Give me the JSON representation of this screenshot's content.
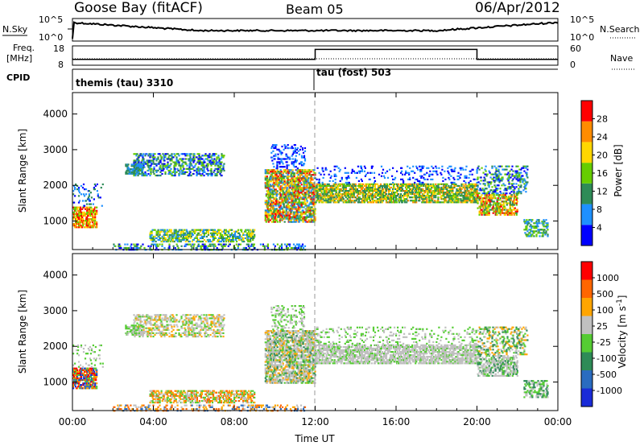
{
  "header": {
    "station": "Goose Bay (fitACF)",
    "beam": "Beam 05",
    "date": "06/Apr/2012"
  },
  "noise_panel": {
    "left_label": "N.Sky",
    "right_label": "N.Search",
    "left_ticks": [
      "10^5",
      "10^0"
    ],
    "right_ticks": [
      "10^5",
      "10^0"
    ]
  },
  "freq_panel": {
    "left_label_1": "Freq.",
    "left_label_2": "[MHz]",
    "right_label": "Nave",
    "left_ticks": [
      "18",
      "8"
    ],
    "right_ticks": [
      "60",
      "0"
    ],
    "freq_segments": [
      {
        "start_hr": 0.0,
        "end_hr": 12.0,
        "mhz": 11.0
      },
      {
        "start_hr": 12.0,
        "end_hr": 20.0,
        "mhz": 16.2
      },
      {
        "start_hr": 20.0,
        "end_hr": 24.0,
        "mhz": 11.0
      }
    ]
  },
  "cpid_panel": {
    "label": "CPID",
    "modes": [
      {
        "start_hr": 0.0,
        "text": "themis (tau) 3310"
      },
      {
        "start_hr": 12.0,
        "text": "tau (fost) 503"
      }
    ]
  },
  "chart_data": [
    {
      "type": "heatmap",
      "name": "power",
      "ylabel": "Slant Range [km]",
      "yticks": [
        "4000",
        "3000",
        "2000",
        "1000"
      ],
      "ylim": [
        200,
        4600
      ],
      "xlim": [
        0,
        24
      ],
      "colorbar_label": "Power [dB]",
      "colorbar_ticks": [
        "28",
        "24",
        "20",
        "16",
        "12",
        "8",
        "4"
      ],
      "colors": [
        "#0000ff",
        "#1e90ff",
        "#2e8b57",
        "#66cd00",
        "#ffd700",
        "#ff8c00",
        "#ff0000"
      ]
    },
    {
      "type": "heatmap",
      "name": "velocity",
      "ylabel": "Slant Range [km]",
      "yticks": [
        "4000",
        "3000",
        "2000",
        "1000"
      ],
      "ylim": [
        200,
        4600
      ],
      "xlim": [
        0,
        24
      ],
      "colorbar_label": "Velocity [m s^-1]",
      "colorbar_ticks": [
        "1000",
        "500",
        "100",
        "25",
        "-25",
        "-100",
        "-500",
        "-1000"
      ],
      "colors": [
        "#1a2bd8",
        "#2a6cc0",
        "#2e8b57",
        "#55cc33",
        "#c0c0c0",
        "#ffa500",
        "#ff6600",
        "#ff0000"
      ]
    }
  ],
  "x_axis": {
    "ticks": [
      "00:00",
      "04:00",
      "08:00",
      "12:00",
      "16:00",
      "20:00",
      "00:00"
    ],
    "label": "Time UT"
  }
}
